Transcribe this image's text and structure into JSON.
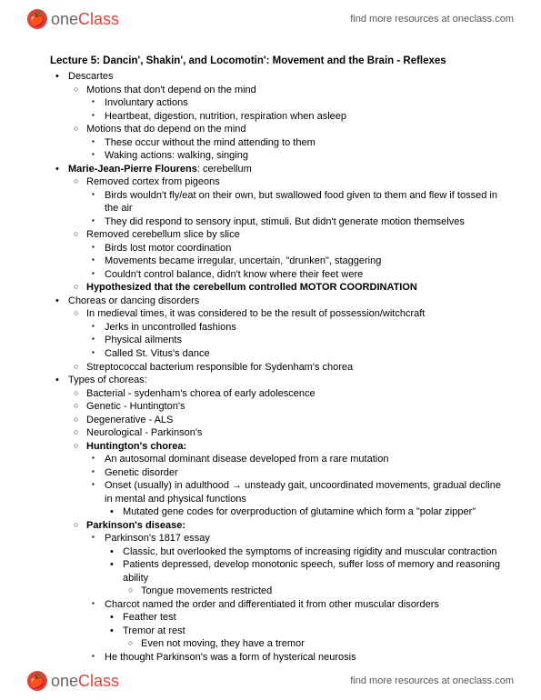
{
  "brand": {
    "one": "one",
    "class": "Class",
    "iconGlyph": "🍎"
  },
  "headerLink": "find more resources at oneclass.com",
  "footerLink": "find more resources at oneclass.com",
  "title": "Lecture 5: Dancin', Shakin', and Locomotin': Movement and the Brain - Reflexes",
  "colors": {
    "brandRed": "#d9443a",
    "textGray": "#555"
  },
  "t": {
    "descartes": "Descartes",
    "noMind": "Motions that don't depend on the mind",
    "invol": "Involuntary actions",
    "heartbeat": "Heartbeat, digestion, nutrition, respiration when asleep",
    "doMind": "Motions that do depend on the mind",
    "occurWithout": "These occur without the mind attending to them",
    "waking": "Waking actions: walking, singing",
    "flourensB": "Marie-Jean-Pierre Flourens",
    "flourensRest": ": cerebellum",
    "removedCortex": "Removed cortex from pigeons",
    "birdsFly": "Birds wouldn't fly/eat on their own, but swallowed food given to them and flew if tossed in the air",
    "respond": "They did respond to sensory input, stimuli. But didn't generate motion themselves",
    "removedCereb": "Removed cerebellum slice by slice",
    "lostCoord": "Birds lost motor coordination",
    "irregular": "Movements became irregular, uncertain, \"drunken\", staggering",
    "balance": "Couldn't control balance, didn't know where their feet were",
    "hypoth": "Hypothesized that the cerebellum controlled MOTOR COORDINATION",
    "choreas": "Choreas or dancing disorders",
    "medieval": "In medieval times, it was considered to be the result of possession/witchcraft",
    "jerks": "Jerks in uncontrolled fashions",
    "physAil": "Physical ailments",
    "vitus": "Called St. Vitus's dance",
    "strep": "Streptococcal bacterium responsible for Sydenham's chorea",
    "types": "Types of choreas:",
    "bact": "Bacterial - sydenham's chorea of early adolescence",
    "genH": "Genetic - Huntington's",
    "deg": "Degenerative - ALS",
    "neuro": "Neurological - Parkinson's",
    "hunt": "Huntington's chorea:",
    "autosomal": "An autosomal dominant disease developed from a rare mutation",
    "genDis": "Genetic disorder",
    "onset": "Onset (usually) in adulthood → unsteady gait, uncoordinated movements, gradual decline in mental and physical functions",
    "mutated": "Mutated gene codes for overproduction of glutamine which form a \"polar zipper\"",
    "park": "Parkinson's disease:",
    "essay": "Parkinson's 1817 essay",
    "classic": "Classic, but overlooked the symptoms of increasing rigidity and muscular contraction",
    "depressed": "Patients depressed, develop monotonic speech, suffer loss of memory and reasoning ability",
    "tongue": "Tongue movements restricted",
    "charcot": "Charcot named the order and differentiated it from other muscular disorders",
    "feather": "Feather test",
    "tremor": "Tremor at rest",
    "evenNot": "Even not moving, they have a tremor",
    "hyst": "He thought Parkinson's was a form of hysterical neurosis"
  }
}
